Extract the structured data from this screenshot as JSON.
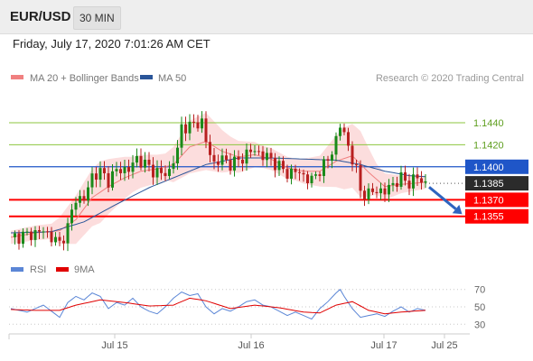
{
  "header": {
    "symbol": "EUR/USD",
    "interval": "30 MIN"
  },
  "timestamp": "Friday, July 17, 2020 7:01:26 AM CET",
  "copyright": "Research © 2020 Trading Central",
  "colors": {
    "ma20": "#f08080",
    "ma50": "#2a5599",
    "bollinger": "#fbd7d7",
    "resistance": "#8cc63f",
    "support": "#ff0000",
    "pivot": "#1f56c8",
    "rsi": "#5b86d6",
    "rsi_ma": "#e00000",
    "arrow": "#2e64c0"
  },
  "chart_data": [
    {
      "type": "candlestick",
      "title": "EUR/USD",
      "legend": [
        {
          "name": "MA 20 + Bollinger Bands",
          "color": "#f08080"
        },
        {
          "name": "MA 50",
          "color": "#2a5599"
        }
      ],
      "x_ticks": [
        "Jul 15",
        "Jul 16",
        "Jul 17",
        "Jul 25"
      ],
      "ylim": [
        1.1322,
        1.1467
      ],
      "levels": [
        {
          "label": "1.1440",
          "value": 1.144,
          "kind": "resistance"
        },
        {
          "label": "1.1420",
          "value": 1.142,
          "kind": "resistance"
        },
        {
          "label": "1.1400",
          "value": 1.14,
          "kind": "pivot"
        },
        {
          "label": "1.1385",
          "value": 1.1385,
          "kind": "last"
        },
        {
          "label": "1.1370",
          "value": 1.137,
          "kind": "support"
        },
        {
          "label": "1.1355",
          "value": 1.1355,
          "kind": "support"
        }
      ],
      "price_path": [
        [
          0,
          1.1336
        ],
        [
          4,
          1.1338
        ],
        [
          8,
          1.1342
        ],
        [
          12,
          1.133
        ],
        [
          14,
          1.1345
        ],
        [
          16,
          1.1372
        ],
        [
          18,
          1.137
        ],
        [
          20,
          1.1392
        ],
        [
          22,
          1.1395
        ],
        [
          24,
          1.1388
        ],
        [
          26,
          1.1396
        ],
        [
          27,
          1.1398
        ],
        [
          29,
          1.1397
        ],
        [
          31,
          1.1408
        ],
        [
          33,
          1.1402
        ],
        [
          35,
          1.1397
        ],
        [
          37,
          1.1393
        ],
        [
          39,
          1.1396
        ],
        [
          41,
          1.1415
        ],
        [
          42,
          1.1437
        ],
        [
          44,
          1.1436
        ],
        [
          46,
          1.1441
        ],
        [
          47,
          1.144
        ],
        [
          48,
          1.1422
        ],
        [
          50,
          1.1403
        ],
        [
          52,
          1.1407
        ],
        [
          54,
          1.1403
        ],
        [
          56,
          1.1405
        ],
        [
          58,
          1.1412
        ],
        [
          60,
          1.1415
        ],
        [
          62,
          1.141
        ],
        [
          64,
          1.1407
        ],
        [
          66,
          1.14
        ],
        [
          68,
          1.1394
        ],
        [
          70,
          1.1396
        ],
        [
          72,
          1.1392
        ],
        [
          74,
          1.1387
        ],
        [
          76,
          1.1398
        ],
        [
          78,
          1.1405
        ],
        [
          80,
          1.1425
        ],
        [
          81,
          1.1437
        ],
        [
          82,
          1.143
        ],
        [
          84,
          1.1407
        ],
        [
          85,
          1.1396
        ],
        [
          86,
          1.1378
        ],
        [
          88,
          1.1375
        ],
        [
          90,
          1.1379
        ],
        [
          92,
          1.1377
        ],
        [
          94,
          1.1385
        ],
        [
          96,
          1.1389
        ],
        [
          98,
          1.1386
        ],
        [
          100,
          1.139
        ],
        [
          102,
          1.1385
        ]
      ],
      "ma20": [
        [
          0,
          1.1336
        ],
        [
          6,
          1.134
        ],
        [
          12,
          1.1342
        ],
        [
          16,
          1.1352
        ],
        [
          20,
          1.1372
        ],
        [
          24,
          1.1382
        ],
        [
          28,
          1.139
        ],
        [
          32,
          1.1396
        ],
        [
          36,
          1.1398
        ],
        [
          40,
          1.1402
        ],
        [
          44,
          1.1418
        ],
        [
          48,
          1.1423
        ],
        [
          52,
          1.1414
        ],
        [
          56,
          1.1409
        ],
        [
          60,
          1.1411
        ],
        [
          64,
          1.1407
        ],
        [
          68,
          1.1399
        ],
        [
          72,
          1.1396
        ],
        [
          76,
          1.1396
        ],
        [
          80,
          1.1405
        ],
        [
          84,
          1.141
        ],
        [
          88,
          1.1395
        ],
        [
          92,
          1.1382
        ],
        [
          96,
          1.1384
        ],
        [
          102,
          1.1386
        ]
      ],
      "ma50": [
        [
          0,
          1.134
        ],
        [
          10,
          1.1341
        ],
        [
          18,
          1.135
        ],
        [
          26,
          1.1366
        ],
        [
          34,
          1.1381
        ],
        [
          42,
          1.1393
        ],
        [
          48,
          1.1402
        ],
        [
          56,
          1.1408
        ],
        [
          64,
          1.1408
        ],
        [
          72,
          1.1407
        ],
        [
          80,
          1.1406
        ],
        [
          86,
          1.1402
        ],
        [
          92,
          1.1396
        ],
        [
          98,
          1.1392
        ],
        [
          102,
          1.1391
        ]
      ],
      "bollinger_band_width": [
        [
          0,
          0.0006
        ],
        [
          10,
          0.0007
        ],
        [
          16,
          0.0022
        ],
        [
          22,
          0.0028
        ],
        [
          30,
          0.0016
        ],
        [
          38,
          0.0012
        ],
        [
          44,
          0.0024
        ],
        [
          48,
          0.0026
        ],
        [
          54,
          0.0016
        ],
        [
          62,
          0.001
        ],
        [
          70,
          0.001
        ],
        [
          76,
          0.0014
        ],
        [
          82,
          0.0028
        ],
        [
          86,
          0.003
        ],
        [
          90,
          0.0014
        ],
        [
          96,
          0.0008
        ],
        [
          102,
          0.0006
        ]
      ],
      "forecast_arrow": {
        "from": [
          102,
          1.1384
        ],
        "to": [
          111,
          1.1357
        ]
      }
    },
    {
      "type": "line",
      "legend": [
        {
          "name": "RSI",
          "color": "#5b86d6"
        },
        {
          "name": "9MA",
          "color": "#e00000"
        }
      ],
      "ylim": [
        22,
        78
      ],
      "y_ticks": [
        30,
        50,
        70
      ],
      "series": [
        {
          "name": "RSI",
          "values": [
            [
              0,
              48
            ],
            [
              4,
              44
            ],
            [
              8,
              52
            ],
            [
              12,
              38
            ],
            [
              14,
              55
            ],
            [
              16,
              62
            ],
            [
              18,
              58
            ],
            [
              20,
              66
            ],
            [
              22,
              62
            ],
            [
              24,
              48
            ],
            [
              26,
              55
            ],
            [
              28,
              52
            ],
            [
              30,
              60
            ],
            [
              32,
              50
            ],
            [
              34,
              45
            ],
            [
              36,
              42
            ],
            [
              38,
              50
            ],
            [
              40,
              60
            ],
            [
              42,
              67
            ],
            [
              44,
              63
            ],
            [
              46,
              65
            ],
            [
              48,
              50
            ],
            [
              50,
              42
            ],
            [
              52,
              48
            ],
            [
              54,
              45
            ],
            [
              56,
              50
            ],
            [
              58,
              56
            ],
            [
              60,
              58
            ],
            [
              62,
              52
            ],
            [
              64,
              50
            ],
            [
              66,
              45
            ],
            [
              68,
              40
            ],
            [
              70,
              44
            ],
            [
              72,
              40
            ],
            [
              74,
              36
            ],
            [
              76,
              48
            ],
            [
              78,
              56
            ],
            [
              80,
              66
            ],
            [
              81,
              70
            ],
            [
              82,
              62
            ],
            [
              84,
              48
            ],
            [
              86,
              38
            ],
            [
              88,
              40
            ],
            [
              90,
              42
            ],
            [
              92,
              39
            ],
            [
              94,
              45
            ],
            [
              96,
              50
            ],
            [
              98,
              44
            ],
            [
              100,
              48
            ],
            [
              102,
              46
            ]
          ]
        },
        {
          "name": "9MA",
          "values": [
            [
              0,
              47
            ],
            [
              6,
              46
            ],
            [
              12,
              46
            ],
            [
              16,
              52
            ],
            [
              22,
              58
            ],
            [
              28,
              55
            ],
            [
              34,
              51
            ],
            [
              40,
              52
            ],
            [
              44,
              60
            ],
            [
              48,
              57
            ],
            [
              54,
              48
            ],
            [
              60,
              52
            ],
            [
              66,
              49
            ],
            [
              72,
              44
            ],
            [
              76,
              43
            ],
            [
              80,
              52
            ],
            [
              84,
              56
            ],
            [
              88,
              46
            ],
            [
              92,
              42
            ],
            [
              96,
              44
            ],
            [
              102,
              46
            ]
          ]
        }
      ]
    }
  ]
}
